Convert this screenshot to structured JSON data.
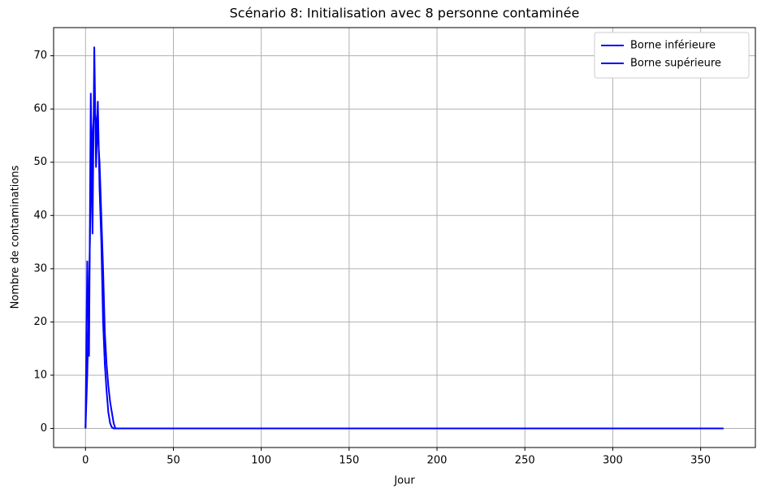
{
  "chart_data": {
    "type": "line",
    "title": "Scénario 8: Initialisation avec 8 personne contaminée",
    "xlabel": "Jour",
    "ylabel": "Nombre de contaminations",
    "x": [
      0,
      1,
      2,
      3,
      4,
      5,
      6,
      7,
      8,
      9,
      10,
      11,
      12,
      13,
      14,
      15,
      16,
      17,
      18,
      363
    ],
    "series": [
      {
        "name": "Borne inférieure",
        "color": "#0000ff",
        "values": [
          0,
          31.5,
          13.5,
          63,
          36.5,
          71.7,
          49,
          61.5,
          45,
          35,
          20,
          12,
          7,
          3,
          1,
          0.2,
          0,
          0,
          0,
          0
        ]
      },
      {
        "name": "Borne supérieure",
        "color": "#0000ff",
        "values": [
          0,
          10,
          25,
          45,
          55,
          60,
          58,
          55,
          50,
          40,
          30,
          18,
          12,
          8,
          5,
          3,
          1,
          0,
          0,
          0
        ]
      }
    ],
    "xlim": [
      -18.15,
      381.15
    ],
    "xticks": [
      0,
      50,
      100,
      150,
      200,
      250,
      300,
      350
    ],
    "ylim": [
      -3.585,
      75.285
    ],
    "yticks": [
      0,
      10,
      20,
      30,
      40,
      50,
      60,
      70
    ],
    "grid": true,
    "legend": "upper right"
  }
}
